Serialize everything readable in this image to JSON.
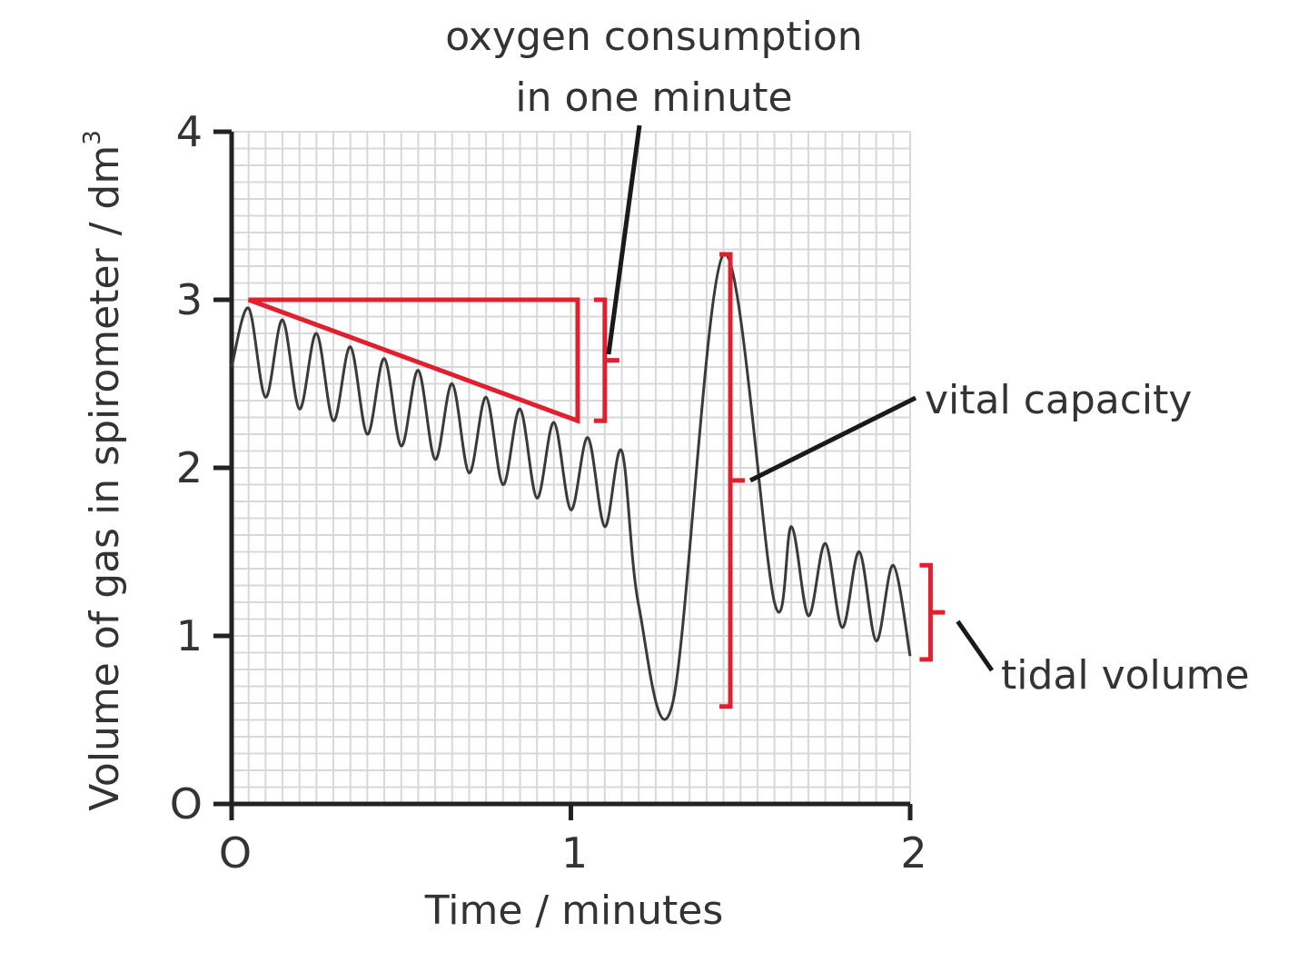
{
  "chart_data": {
    "type": "line",
    "title": "",
    "xlabel": "Time / minutes",
    "ylabel": "Volume of gas in spirometer / dm",
    "ylabel_superscript": "3",
    "xlim": [
      0,
      2
    ],
    "ylim": [
      0,
      4
    ],
    "x_ticks": [
      0,
      1,
      2
    ],
    "x_tick_labels": [
      "O",
      "1",
      "2"
    ],
    "y_ticks": [
      0,
      1,
      2,
      3,
      4
    ],
    "y_tick_labels": [
      "O",
      "1",
      "2",
      "3",
      "4"
    ],
    "grid": true,
    "series": [
      {
        "name": "spirometer trace",
        "color": "#3a3a3a",
        "x": [
          0.0,
          0.05,
          0.1,
          0.15,
          0.2,
          0.25,
          0.3,
          0.35,
          0.4,
          0.45,
          0.5,
          0.55,
          0.6,
          0.65,
          0.7,
          0.75,
          0.8,
          0.85,
          0.9,
          0.95,
          1.0,
          1.05,
          1.1,
          1.15,
          1.2,
          1.3,
          1.45,
          1.6,
          1.65,
          1.7,
          1.75,
          1.8,
          1.85,
          1.9,
          1.95,
          2.0
        ],
        "y": [
          2.6,
          2.95,
          2.42,
          2.88,
          2.35,
          2.8,
          2.28,
          2.72,
          2.2,
          2.65,
          2.13,
          2.58,
          2.05,
          2.5,
          1.97,
          2.42,
          1.9,
          2.35,
          1.82,
          2.27,
          1.75,
          2.18,
          1.65,
          2.1,
          1.18,
          0.6,
          3.27,
          1.2,
          1.65,
          1.12,
          1.55,
          1.05,
          1.5,
          0.97,
          1.42,
          0.88
        ]
      }
    ],
    "annotations": [
      {
        "name": "oxygen-consumption",
        "text_lines": [
          "oxygen consumption",
          "in one minute"
        ],
        "triangle": {
          "x0": 0.05,
          "x1": 1.02,
          "y_top": 3.0,
          "y_bottom": 2.28
        },
        "bracket": {
          "x": 1.1,
          "y_top": 3.0,
          "y_bottom": 2.28
        }
      },
      {
        "name": "vital-capacity",
        "text": "vital capacity",
        "bracket": {
          "x": 1.47,
          "y_top": 3.27,
          "y_bottom": 0.58
        }
      },
      {
        "name": "tidal-volume",
        "text": "tidal volume",
        "bracket": {
          "x": 2.06,
          "y_top": 1.42,
          "y_bottom": 0.86
        }
      }
    ],
    "colors": {
      "trace": "#3a3a3a",
      "annotation": "#e0202e",
      "grid": "#d8d8d8",
      "axis": "#222222",
      "leader": "#1a1a1a"
    }
  }
}
